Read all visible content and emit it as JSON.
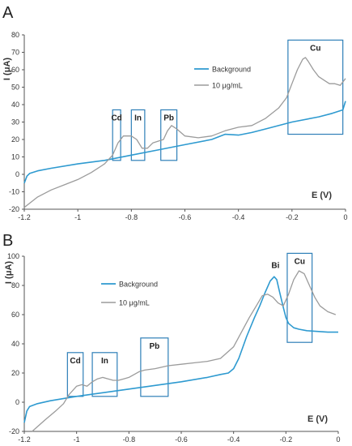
{
  "chart_data": [
    {
      "panel_label": "A",
      "type": "line",
      "xlabel": "E (V)",
      "ylabel": "I (μA)",
      "xlim": [
        -1.2,
        0
      ],
      "ylim": [
        -20,
        80
      ],
      "xticks": [
        -1.2,
        -1,
        -0.8,
        -0.6,
        -0.4,
        -0.2,
        0
      ],
      "xtick_labels": [
        "-1.2",
        "-1",
        "-0.8",
        "-0.6",
        "-0.4",
        "-0.2",
        "0"
      ],
      "yticks": [
        -20,
        -10,
        0,
        10,
        20,
        30,
        40,
        50,
        60,
        70,
        80
      ],
      "ytick_labels": [
        "-20",
        "-10",
        "0",
        "10",
        "20",
        "30",
        "40",
        "50",
        "60",
        "70",
        "80"
      ],
      "legend_position": "top-right",
      "series": [
        {
          "name": "Background",
          "color": "#2e9ad0",
          "x": [
            -1.2,
            -1.19,
            -1.18,
            -1.15,
            -1.1,
            -1.0,
            -0.9,
            -0.8,
            -0.7,
            -0.6,
            -0.5,
            -0.45,
            -0.4,
            -0.35,
            -0.3,
            -0.2,
            -0.1,
            -0.05,
            -0.01,
            0.0
          ],
          "y": [
            -5,
            -1,
            0.5,
            2,
            3.5,
            6,
            8,
            11,
            14,
            17,
            20,
            23,
            22.5,
            24,
            26,
            30,
            33,
            35,
            37,
            42
          ]
        },
        {
          "name": "10 μg/mL",
          "color": "#9b9b9b",
          "x": [
            -1.2,
            -1.15,
            -1.1,
            -1.05,
            -1.0,
            -0.95,
            -0.9,
            -0.87,
            -0.85,
            -0.83,
            -0.8,
            -0.78,
            -0.76,
            -0.74,
            -0.72,
            -0.7,
            -0.68,
            -0.665,
            -0.65,
            -0.63,
            -0.6,
            -0.55,
            -0.5,
            -0.45,
            -0.4,
            -0.35,
            -0.3,
            -0.25,
            -0.22,
            -0.2,
            -0.18,
            -0.16,
            -0.15,
            -0.14,
            -0.12,
            -0.1,
            -0.08,
            -0.06,
            -0.04,
            -0.02,
            0.0
          ],
          "y": [
            -19,
            -13,
            -9,
            -6,
            -3,
            1,
            6,
            11,
            18,
            22,
            22,
            20,
            15,
            15,
            18,
            19,
            20,
            25,
            28,
            26,
            22,
            21,
            22,
            25,
            27,
            28,
            32,
            38,
            44,
            52,
            60,
            66,
            67,
            65,
            60,
            56,
            54,
            52,
            52,
            51,
            55
          ]
        }
      ],
      "annotations": [
        {
          "text": "Cd",
          "x0": -0.87,
          "x1": -0.84,
          "y0": 8,
          "y1": 37
        },
        {
          "text": "In",
          "x0": -0.8,
          "x1": -0.75,
          "y0": 8,
          "y1": 37
        },
        {
          "text": "Pb",
          "x0": -0.69,
          "x1": -0.63,
          "y0": 8,
          "y1": 37
        },
        {
          "text": "Cu",
          "x0": -0.215,
          "x1": -0.01,
          "y0": 23,
          "y1": 77
        }
      ]
    },
    {
      "panel_label": "B",
      "type": "line",
      "xlabel": "E (V)",
      "ylabel": "I (μA)",
      "xlim": [
        -1.2,
        0
      ],
      "ylim": [
        -20,
        100
      ],
      "xticks": [
        -1.2,
        -1,
        -0.8,
        -0.6,
        -0.4,
        -0.2,
        0
      ],
      "xtick_labels": [
        "-1.2",
        "-1",
        "-0.8",
        "-0.6",
        "-0.4",
        "-0.2",
        "0"
      ],
      "yticks": [
        -20,
        0,
        20,
        40,
        60,
        80,
        100
      ],
      "ytick_labels": [
        "-20",
        "0",
        "20",
        "40",
        "60",
        "80",
        "100"
      ],
      "legend_position": "top-left",
      "series": [
        {
          "name": "Background",
          "color": "#2e9ad0",
          "x": [
            -1.2,
            -1.19,
            -1.18,
            -1.15,
            -1.1,
            -1.0,
            -0.9,
            -0.8,
            -0.7,
            -0.6,
            -0.5,
            -0.45,
            -0.42,
            -0.4,
            -0.38,
            -0.35,
            -0.32,
            -0.3,
            -0.28,
            -0.26,
            -0.245,
            -0.235,
            -0.225,
            -0.21,
            -0.2,
            -0.19,
            -0.17,
            -0.15,
            -0.12,
            -0.08,
            -0.04,
            0.0
          ],
          "y": [
            -14,
            -6,
            -3,
            -1,
            1,
            4,
            6.5,
            9,
            11.5,
            14,
            17,
            19,
            20,
            23,
            30,
            45,
            58,
            66,
            75,
            83,
            86,
            84,
            76,
            65,
            58,
            54,
            51,
            50,
            49,
            48.5,
            48,
            48
          ]
        },
        {
          "name": "10 μg/mL",
          "color": "#9b9b9b",
          "x": [
            -1.17,
            -1.12,
            -1.08,
            -1.05,
            -1.03,
            -1.0,
            -0.98,
            -0.96,
            -0.94,
            -0.92,
            -0.9,
            -0.88,
            -0.86,
            -0.84,
            -0.82,
            -0.8,
            -0.78,
            -0.76,
            -0.74,
            -0.7,
            -0.65,
            -0.6,
            -0.55,
            -0.5,
            -0.45,
            -0.4,
            -0.37,
            -0.34,
            -0.31,
            -0.29,
            -0.27,
            -0.25,
            -0.23,
            -0.21,
            -0.19,
            -0.17,
            -0.15,
            -0.13,
            -0.11,
            -0.09,
            -0.07,
            -0.04,
            -0.01
          ],
          "y": [
            -20,
            -12,
            -6,
            -1,
            5,
            11,
            12,
            11,
            14,
            16,
            17,
            16,
            15,
            15,
            16,
            17,
            19,
            21,
            22,
            23,
            25,
            26,
            27,
            28,
            30,
            38,
            48,
            58,
            67,
            73,
            74,
            72,
            68,
            66,
            74,
            84,
            90,
            88,
            80,
            72,
            66,
            62,
            60
          ]
        }
      ],
      "annotations": [
        {
          "text": "Cd",
          "x0": -1.035,
          "x1": -0.975,
          "y0": 4,
          "y1": 34
        },
        {
          "text": "In",
          "x0": -0.94,
          "x1": -0.845,
          "y0": 4,
          "y1": 34
        },
        {
          "text": "Pb",
          "x0": -0.755,
          "x1": -0.65,
          "y0": 4,
          "y1": 44
        },
        {
          "text": "Cu",
          "x0": -0.195,
          "x1": -0.1,
          "y0": 41,
          "y1": 102
        },
        {
          "text": "Bi",
          "x": -0.24,
          "y": 92
        }
      ]
    }
  ]
}
